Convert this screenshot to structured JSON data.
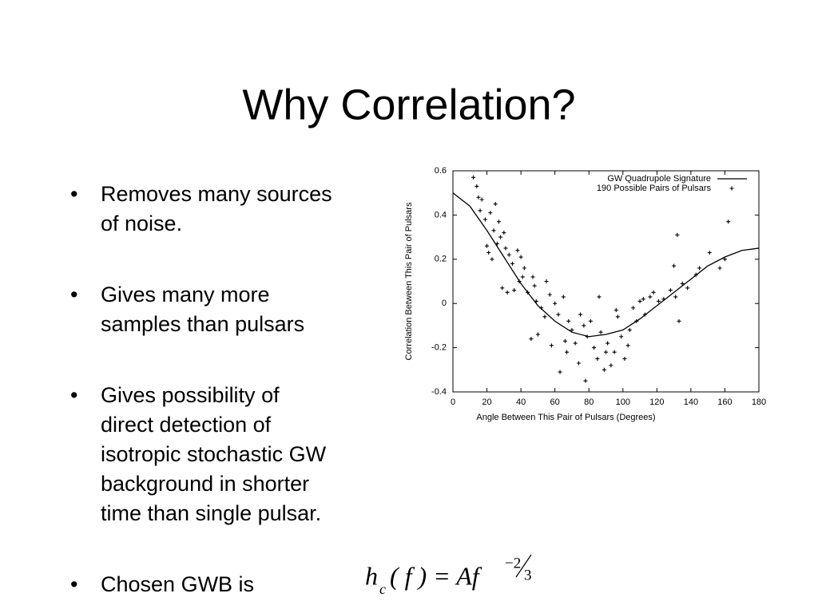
{
  "slide": {
    "title": "Why Correlation?",
    "bullets": [
      [
        "Removes many sources",
        "of noise."
      ],
      [
        "Gives many more",
        "samples than pulsars"
      ],
      [
        "Gives possibility of",
        "direct detection of",
        "isotropic stochastic GW",
        "background in shorter",
        "time than single pulsar."
      ],
      [
        "Chosen GWB is"
      ]
    ],
    "formula": {
      "h": "h",
      "sub": "c",
      "body": "( f ) = Af",
      "num": "−2",
      "den": "3"
    }
  },
  "chart_data": {
    "type": "scatter",
    "x_label": "Angle Between This Pair of Pulsars (Degrees)",
    "y_label": "Correlation Between This Pair of Pulsars",
    "xlim": [
      0,
      180
    ],
    "xticks": [
      0,
      20,
      40,
      60,
      80,
      100,
      120,
      140,
      160,
      180
    ],
    "ylim": [
      -0.4,
      0.6
    ],
    "yticks": [
      -0.4,
      -0.2,
      0,
      0.2,
      0.4,
      0.6
    ],
    "legend": "upper right",
    "series": [
      {
        "name": "GW Quadrupole Signature",
        "type": "line",
        "color": "#000000",
        "x": [
          0,
          10,
          20,
          30,
          40,
          50,
          60,
          70,
          80,
          90,
          100,
          110,
          120,
          130,
          140,
          150,
          160,
          170,
          180
        ],
        "values": [
          0.5,
          0.44,
          0.33,
          0.21,
          0.09,
          -0.01,
          -0.08,
          -0.13,
          -0.15,
          -0.14,
          -0.12,
          -0.07,
          -0.01,
          0.05,
          0.11,
          0.17,
          0.21,
          0.24,
          0.25
        ]
      },
      {
        "name": "190 Possible Pairs of Pulsars",
        "type": "scatter",
        "color": "#000000",
        "x": [
          12,
          14,
          15,
          17,
          16,
          19,
          22,
          25,
          27,
          24,
          28,
          20,
          21,
          23,
          26,
          30,
          31,
          33,
          35,
          38,
          40,
          42,
          29,
          32,
          36,
          39,
          41,
          44,
          47,
          49,
          52,
          55,
          57,
          60,
          62,
          65,
          68,
          70,
          72,
          75,
          77,
          79,
          81,
          83,
          85,
          87,
          89,
          91,
          93,
          95,
          97,
          99,
          101,
          104,
          106,
          108,
          110,
          113,
          116,
          118,
          121,
          124,
          128,
          131,
          133,
          135,
          138,
          132,
          130,
          143,
          145,
          151,
          157,
          160,
          162,
          63,
          67,
          74,
          58,
          46,
          54,
          50,
          48,
          78,
          90,
          103,
          66,
          86,
          96,
          112
        ],
        "values": [
          0.57,
          0.53,
          0.48,
          0.47,
          0.42,
          0.38,
          0.41,
          0.45,
          0.37,
          0.33,
          0.3,
          0.26,
          0.23,
          0.2,
          0.27,
          0.32,
          0.25,
          0.22,
          0.18,
          0.24,
          0.21,
          0.16,
          0.07,
          0.05,
          0.06,
          0.1,
          0.12,
          0.05,
          0.12,
          0.01,
          -0.02,
          0.1,
          0.04,
          0.0,
          -0.05,
          0.03,
          -0.08,
          -0.12,
          -0.18,
          -0.05,
          -0.1,
          -0.15,
          -0.08,
          -0.2,
          -0.25,
          -0.13,
          -0.3,
          -0.18,
          -0.28,
          -0.22,
          -0.06,
          -0.15,
          -0.25,
          -0.12,
          -0.02,
          -0.08,
          0.01,
          -0.05,
          0.03,
          0.05,
          0.01,
          0.02,
          0.06,
          0.03,
          -0.08,
          0.09,
          0.07,
          0.31,
          0.17,
          0.13,
          0.16,
          0.23,
          0.16,
          0.2,
          0.37,
          -0.31,
          -0.22,
          -0.27,
          -0.19,
          -0.16,
          -0.06,
          -0.14,
          0.08,
          -0.35,
          -0.22,
          -0.19,
          -0.17,
          0.03,
          -0.03,
          0.02
        ]
      }
    ]
  }
}
